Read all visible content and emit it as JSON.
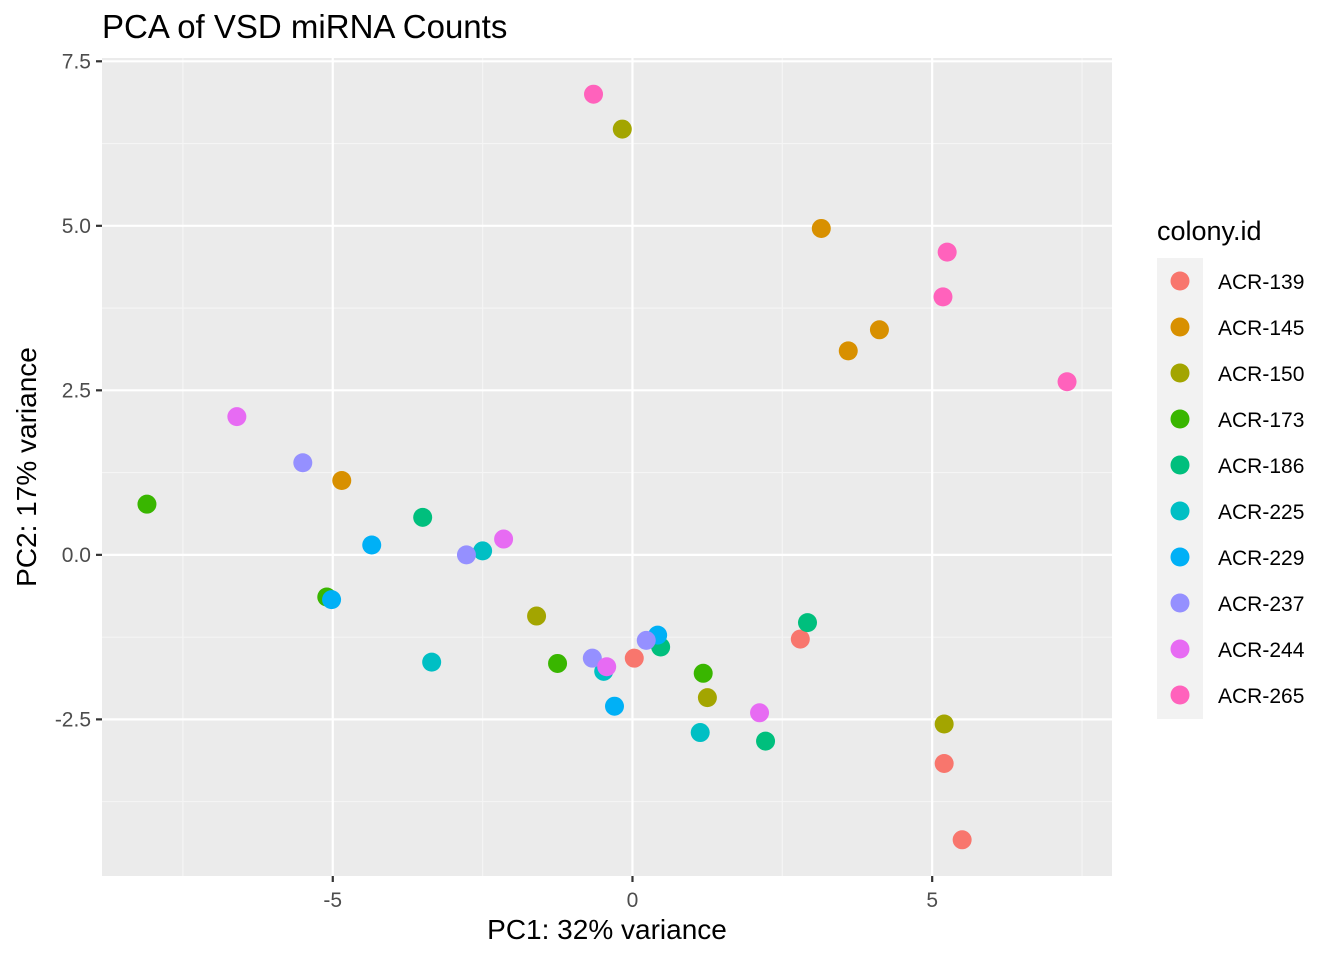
{
  "chart_data": {
    "type": "scatter",
    "title": "PCA of VSD miRNA Counts",
    "xlabel": "PC1: 32% variance",
    "ylabel": "PC2: 17% variance",
    "xlim": [
      -8.85,
      8.0
    ],
    "ylim": [
      -4.88,
      7.55
    ],
    "x_ticks": [
      -5,
      0,
      5
    ],
    "x_tick_labels": [
      "-5",
      "0",
      "5"
    ],
    "y_ticks": [
      -2.5,
      0,
      2.5,
      5,
      7.5
    ],
    "y_tick_labels": [
      "-2.5",
      "0.0",
      "2.5",
      "5.0",
      "7.5"
    ],
    "grid": true,
    "legend": {
      "title": "colony.id",
      "position": "right"
    },
    "series": [
      {
        "name": "ACR-139",
        "color": "#F8766D",
        "points": [
          [
            0.03,
            -1.57
          ],
          [
            2.8,
            -1.28
          ],
          [
            5.2,
            -3.17
          ],
          [
            5.5,
            -4.33
          ]
        ]
      },
      {
        "name": "ACR-145",
        "color": "#D89000",
        "points": [
          [
            -4.85,
            1.13
          ],
          [
            3.15,
            4.96
          ],
          [
            3.6,
            3.1
          ],
          [
            4.12,
            3.42
          ]
        ]
      },
      {
        "name": "ACR-150",
        "color": "#A3A500",
        "points": [
          [
            -0.17,
            6.47
          ],
          [
            -1.6,
            -0.93
          ],
          [
            1.25,
            -2.17
          ],
          [
            5.2,
            -2.57
          ]
        ]
      },
      {
        "name": "ACR-173",
        "color": "#39B600",
        "points": [
          [
            -8.1,
            0.77
          ],
          [
            -5.1,
            -0.64
          ],
          [
            -1.25,
            -1.65
          ],
          [
            1.18,
            -1.8
          ]
        ]
      },
      {
        "name": "ACR-186",
        "color": "#00BF7D",
        "points": [
          [
            -3.5,
            0.57
          ],
          [
            0.47,
            -1.4
          ],
          [
            2.92,
            -1.03
          ],
          [
            2.22,
            -2.83
          ]
        ]
      },
      {
        "name": "ACR-225",
        "color": "#00BFC4",
        "points": [
          [
            -2.5,
            0.06
          ],
          [
            -3.35,
            -1.63
          ],
          [
            -0.48,
            -1.77
          ],
          [
            1.13,
            -2.7
          ]
        ]
      },
      {
        "name": "ACR-229",
        "color": "#00B0F6",
        "points": [
          [
            -4.35,
            0.15
          ],
          [
            -5.02,
            -0.68
          ],
          [
            0.42,
            -1.22
          ],
          [
            -0.3,
            -2.3
          ]
        ]
      },
      {
        "name": "ACR-237",
        "color": "#9590FF",
        "points": [
          [
            -5.5,
            1.4
          ],
          [
            -2.77,
            0.0
          ],
          [
            0.23,
            -1.3
          ],
          [
            -0.67,
            -1.57
          ]
        ]
      },
      {
        "name": "ACR-244",
        "color": "#E76BF3",
        "points": [
          [
            -6.6,
            2.1
          ],
          [
            -2.15,
            0.24
          ],
          [
            -0.43,
            -1.7
          ],
          [
            2.12,
            -2.4
          ]
        ]
      },
      {
        "name": "ACR-265",
        "color": "#FF62BC",
        "points": [
          [
            -0.65,
            7.0
          ],
          [
            5.25,
            4.6
          ],
          [
            5.18,
            3.92
          ],
          [
            7.25,
            2.63
          ]
        ]
      }
    ]
  },
  "style": {
    "panel_background": "#EBEBEB",
    "grid_major": "#FFFFFF",
    "grid_minor": "#F5F5F5",
    "legend_key_background": "#F2F2F2"
  }
}
